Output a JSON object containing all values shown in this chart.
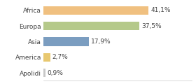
{
  "categories": [
    "Africa",
    "Europa",
    "Asia",
    "America",
    "Apolidi"
  ],
  "values": [
    41.1,
    37.5,
    17.9,
    2.7,
    0.9
  ],
  "labels": [
    "41,1%",
    "37,5%",
    "17,9%",
    "2,7%",
    "0,9%"
  ],
  "bar_colors": [
    "#f0c080",
    "#b5c98a",
    "#7b9dc0",
    "#e8c870",
    "#c8c8c8"
  ],
  "background_color": "#ffffff",
  "label_fontsize": 6.5,
  "tick_fontsize": 6.5,
  "xlim": [
    0,
    58
  ]
}
